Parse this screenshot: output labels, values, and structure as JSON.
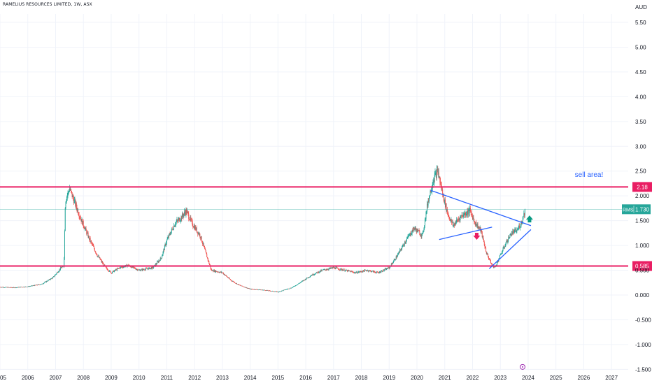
{
  "header": {
    "symbol_title": "RAMELIUS RESOURCES LIMITED, 1W, ASX",
    "currency": "AUD"
  },
  "colors": {
    "background": "#ffffff",
    "grid": "#f0f3fa",
    "up": "#26a69a",
    "down": "#ef5350",
    "level_line": "#e91e63",
    "trend_line": "#2962ff",
    "price_line": "#26a69a",
    "annotation_text": "#2962ff",
    "axis_text": "#131722"
  },
  "chart_data": {
    "type": "candlestick",
    "symbol": "RMS",
    "interval": "1W",
    "xlabel": "",
    "ylabel": "",
    "x_ticks": [
      "05",
      "2006",
      "2007",
      "2008",
      "2009",
      "2010",
      "2011",
      "2012",
      "2013",
      "2014",
      "2015",
      "2016",
      "2017",
      "2018",
      "2019",
      "2020",
      "2021",
      "2022",
      "2023",
      "2024",
      "2025",
      "2026",
      "2027"
    ],
    "x_tick_years": [
      2005,
      2006,
      2007,
      2008,
      2009,
      2010,
      2011,
      2012,
      2013,
      2014,
      2015,
      2016,
      2017,
      2018,
      2019,
      2020,
      2021,
      2022,
      2023,
      2024,
      2025,
      2026,
      2027
    ],
    "x_range": [
      2005.0,
      2027.6
    ],
    "y_ticks": [
      5.5,
      5.0,
      4.5,
      4.0,
      3.5,
      3.0,
      2.5,
      2.0,
      1.5,
      1.0,
      0.5,
      0.0,
      -0.5,
      -1.0,
      -1.5
    ],
    "y_tick_labels": [
      "5.50",
      "5.00",
      "4.50",
      "4.00",
      "3.50",
      "3.00",
      "2.50",
      "2.000",
      "1.500",
      "1.000",
      "0.500",
      "0.000",
      "-0.500",
      "-1.000",
      "-1.500"
    ],
    "ylim": [
      -1.52,
      5.75
    ],
    "price_path": [
      [
        2005.0,
        0.16
      ],
      [
        2005.5,
        0.15
      ],
      [
        2006.0,
        0.17
      ],
      [
        2006.5,
        0.22
      ],
      [
        2006.9,
        0.35
      ],
      [
        2007.2,
        0.55
      ],
      [
        2007.3,
        0.58
      ],
      [
        2007.35,
        1.9
      ],
      [
        2007.5,
        2.15
      ],
      [
        2007.7,
        1.85
      ],
      [
        2007.9,
        1.55
      ],
      [
        2008.2,
        1.15
      ],
      [
        2008.5,
        0.8
      ],
      [
        2008.8,
        0.55
      ],
      [
        2009.0,
        0.45
      ],
      [
        2009.3,
        0.55
      ],
      [
        2009.6,
        0.6
      ],
      [
        2010.0,
        0.5
      ],
      [
        2010.5,
        0.55
      ],
      [
        2010.8,
        0.75
      ],
      [
        2011.0,
        1.1
      ],
      [
        2011.3,
        1.45
      ],
      [
        2011.5,
        1.55
      ],
      [
        2011.7,
        1.7
      ],
      [
        2011.9,
        1.45
      ],
      [
        2012.2,
        1.2
      ],
      [
        2012.4,
        0.85
      ],
      [
        2012.6,
        0.5
      ],
      [
        2013.0,
        0.45
      ],
      [
        2013.3,
        0.3
      ],
      [
        2013.6,
        0.2
      ],
      [
        2014.0,
        0.12
      ],
      [
        2014.5,
        0.1
      ],
      [
        2015.0,
        0.06
      ],
      [
        2015.5,
        0.15
      ],
      [
        2015.8,
        0.25
      ],
      [
        2016.2,
        0.4
      ],
      [
        2016.6,
        0.5
      ],
      [
        2017.0,
        0.55
      ],
      [
        2017.4,
        0.5
      ],
      [
        2017.8,
        0.45
      ],
      [
        2018.2,
        0.5
      ],
      [
        2018.6,
        0.45
      ],
      [
        2019.0,
        0.55
      ],
      [
        2019.3,
        0.8
      ],
      [
        2019.6,
        1.1
      ],
      [
        2019.9,
        1.35
      ],
      [
        2020.2,
        1.2
      ],
      [
        2020.4,
        1.9
      ],
      [
        2020.6,
        2.35
      ],
      [
        2020.75,
        2.5
      ],
      [
        2020.9,
        2.1
      ],
      [
        2021.1,
        1.65
      ],
      [
        2021.3,
        1.4
      ],
      [
        2021.6,
        1.6
      ],
      [
        2021.9,
        1.7
      ],
      [
        2022.1,
        1.45
      ],
      [
        2022.3,
        1.3
      ],
      [
        2022.5,
        0.85
      ],
      [
        2022.7,
        0.6
      ],
      [
        2022.8,
        0.55
      ],
      [
        2023.0,
        0.8
      ],
      [
        2023.2,
        1.05
      ],
      [
        2023.4,
        1.25
      ],
      [
        2023.6,
        1.3
      ],
      [
        2023.75,
        1.45
      ],
      [
        2023.9,
        1.73
      ]
    ],
    "horizontal_levels": [
      {
        "value": 2.18,
        "label": "2.18"
      },
      {
        "value": 0.585,
        "label": "0.585"
      }
    ],
    "last_price": {
      "symbol": "RMS",
      "value": 1.73,
      "label": "1.730"
    },
    "trend_lines": [
      {
        "from": [
          2020.5,
          2.11
        ],
        "to": [
          2024.1,
          1.4
        ]
      },
      {
        "from": [
          2020.8,
          1.12
        ],
        "to": [
          2022.7,
          1.37
        ]
      },
      {
        "from": [
          2022.6,
          0.53
        ],
        "to": [
          2024.1,
          1.32
        ]
      }
    ],
    "markers": [
      {
        "type": "arrow-down",
        "x": 2022.15,
        "y": 1.17,
        "color": "#e91e63"
      },
      {
        "type": "arrow-up",
        "x": 2024.05,
        "y": 1.55,
        "color": "#089981"
      },
      {
        "type": "event-circle",
        "x": 2023.8,
        "y": -1.45,
        "color": "#9c27b0"
      }
    ],
    "annotations": [
      {
        "text": "sell area!",
        "x": 2026.7,
        "y": 2.38
      }
    ],
    "grid": false,
    "legend": "none"
  }
}
